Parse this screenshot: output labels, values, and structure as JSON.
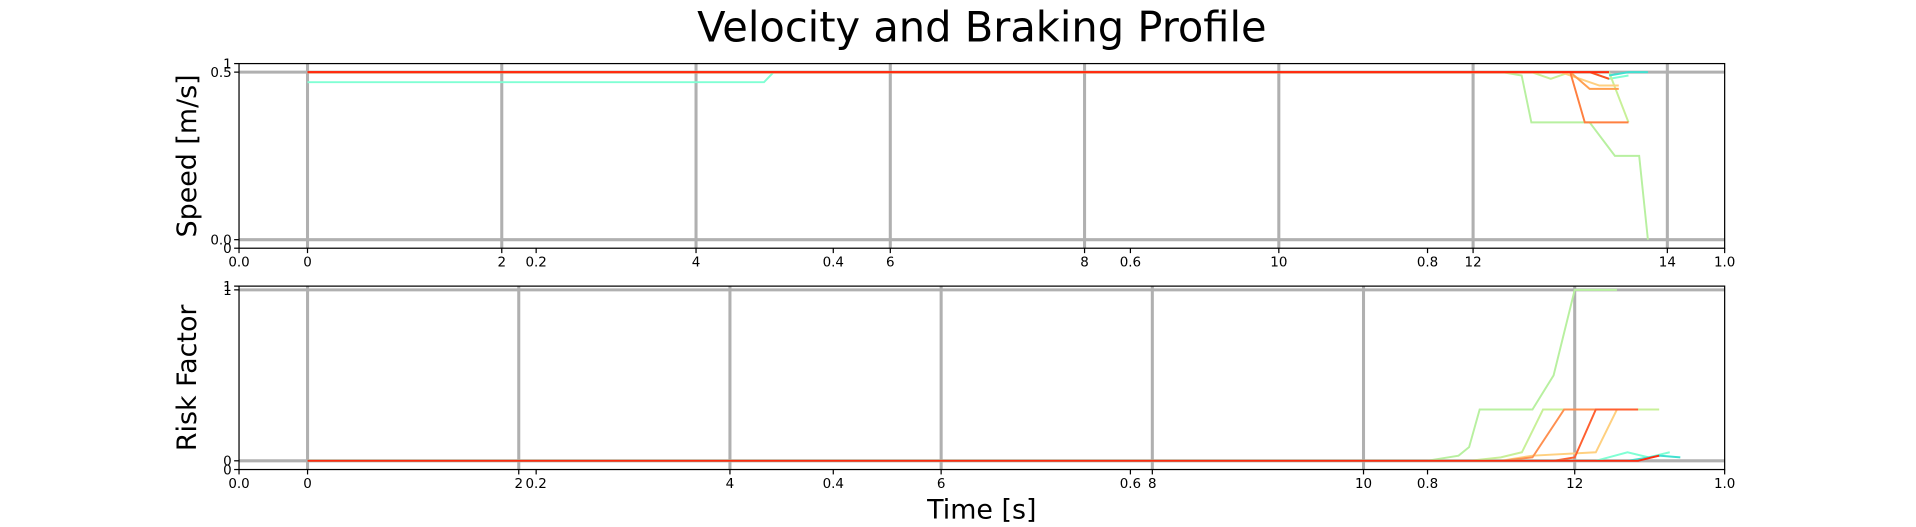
{
  "chart_data": [
    {
      "type": "line",
      "title": "Velocity and Braking Profile",
      "ylabel": "Speed [m/s]",
      "xlim": [
        -0.705,
        14.59
      ],
      "xticks": [
        0,
        2,
        4,
        6,
        8,
        10,
        12,
        14
      ],
      "ylim": [
        -0.0255,
        0.5255
      ],
      "yticks": [
        {
          "value": 0,
          "label": "0.0"
        },
        0.5
      ],
      "x2lim": [
        0,
        1
      ],
      "x2ticks": [
        {
          "value": 0,
          "label": "0.0"
        },
        0.2,
        0.4,
        0.6,
        0.8,
        {
          "value": 1,
          "label": "1.0"
        }
      ],
      "y2lim": [
        0,
        1
      ],
      "y2ticks": [
        0,
        1
      ],
      "grid": true,
      "series": [
        {
          "color": "#80ffd4",
          "x": [
            0,
            4.7,
            4.8,
            13.2,
            13.4,
            13.6
          ],
          "values": [
            0.47,
            0.47,
            0.5,
            0.5,
            0.48,
            0.49
          ]
        },
        {
          "color": "#b8f0a0",
          "x": [
            0,
            12.3,
            12.5,
            12.6,
            13.2,
            13.46,
            13.71,
            13.8
          ],
          "values": [
            0.5,
            0.5,
            0.49,
            0.35,
            0.35,
            0.25,
            0.25,
            0
          ]
        },
        {
          "color": "#c8f098",
          "x": [
            0,
            12.6,
            12.8,
            13.0,
            13.4,
            13.6
          ],
          "values": [
            0.5,
            0.5,
            0.48,
            0.5,
            0.5,
            0.35
          ]
        },
        {
          "color": "#ffd080",
          "x": [
            0,
            12.9,
            13.1,
            13.3,
            13.5
          ],
          "values": [
            0.5,
            0.5,
            0.48,
            0.46,
            0.46
          ]
        },
        {
          "color": "#ffa050",
          "x": [
            0,
            13.0,
            13.2,
            13.5
          ],
          "values": [
            0.5,
            0.5,
            0.45,
            0.45
          ]
        },
        {
          "color": "#ff8040",
          "x": [
            0,
            13.0,
            13.15,
            13.6
          ],
          "values": [
            0.5,
            0.5,
            0.35,
            0.35
          ]
        },
        {
          "color": "#ff5020",
          "x": [
            0,
            13.2,
            13.4
          ],
          "values": [
            0.5,
            0.5,
            0.48
          ]
        },
        {
          "color": "#ff2a10",
          "x": [
            0,
            13.4
          ],
          "values": [
            0.5,
            0.5
          ]
        },
        {
          "color": "#40e0d0",
          "x": [
            13.4,
            13.6,
            13.8
          ],
          "values": [
            0.49,
            0.5,
            0.5
          ]
        }
      ]
    },
    {
      "type": "line",
      "ylabel": "Risk Factor",
      "xlabel": "Time [s]",
      "xlim": [
        -0.649,
        13.42
      ],
      "xticks": [
        0,
        2,
        4,
        6,
        8,
        10,
        12
      ],
      "ylim": [
        -0.0511,
        1.0219
      ],
      "yticks": [
        0,
        1
      ],
      "x2lim": [
        0,
        1
      ],
      "x2ticks": [
        {
          "value": 0,
          "label": "0.0"
        },
        0.2,
        0.4,
        0.6,
        0.8,
        {
          "value": 1,
          "label": "1.0"
        }
      ],
      "y2lim": [
        0,
        1
      ],
      "y2ticks": [
        0,
        1
      ],
      "grid": true,
      "series": [
        {
          "color": "#b8f0a0",
          "x": [
            0,
            10.6,
            10.9,
            11.0,
            11.1,
            11.6,
            11.8,
            12.0,
            12.4
          ],
          "values": [
            0,
            0,
            0.03,
            0.08,
            0.3,
            0.3,
            0.5,
            1,
            1
          ]
        },
        {
          "color": "#c8f098",
          "x": [
            0,
            11.0,
            11.3,
            11.5,
            11.7,
            12.1,
            12.5,
            12.8
          ],
          "values": [
            0,
            0,
            0.02,
            0.05,
            0.3,
            0.3,
            0.3,
            0.3
          ]
        },
        {
          "color": "#ffd080",
          "x": [
            0,
            11.3,
            11.6,
            12.2,
            12.4,
            12.6
          ],
          "values": [
            0,
            0,
            0.03,
            0.05,
            0.3,
            0.3
          ]
        },
        {
          "color": "#ff9050",
          "x": [
            0,
            11.3,
            11.6,
            11.9,
            12.6
          ],
          "values": [
            0,
            0,
            0.02,
            0.3,
            0.3
          ]
        },
        {
          "color": "#ff6030",
          "x": [
            0,
            11.8,
            12.0,
            12.2,
            12.6
          ],
          "values": [
            0,
            0,
            0.02,
            0.3,
            0.3
          ]
        },
        {
          "color": "#80ffd4",
          "x": [
            0,
            12.2,
            12.5,
            12.7,
            12.9
          ],
          "values": [
            0,
            0,
            0.05,
            0.02,
            0.05
          ]
        },
        {
          "color": "#40e0d0",
          "x": [
            0,
            12.5,
            12.8,
            13.0
          ],
          "values": [
            0,
            0,
            0.03,
            0.02
          ]
        },
        {
          "color": "#ff2a10",
          "x": [
            0,
            12.6,
            12.8
          ],
          "values": [
            0,
            0,
            0.03
          ]
        }
      ]
    }
  ]
}
